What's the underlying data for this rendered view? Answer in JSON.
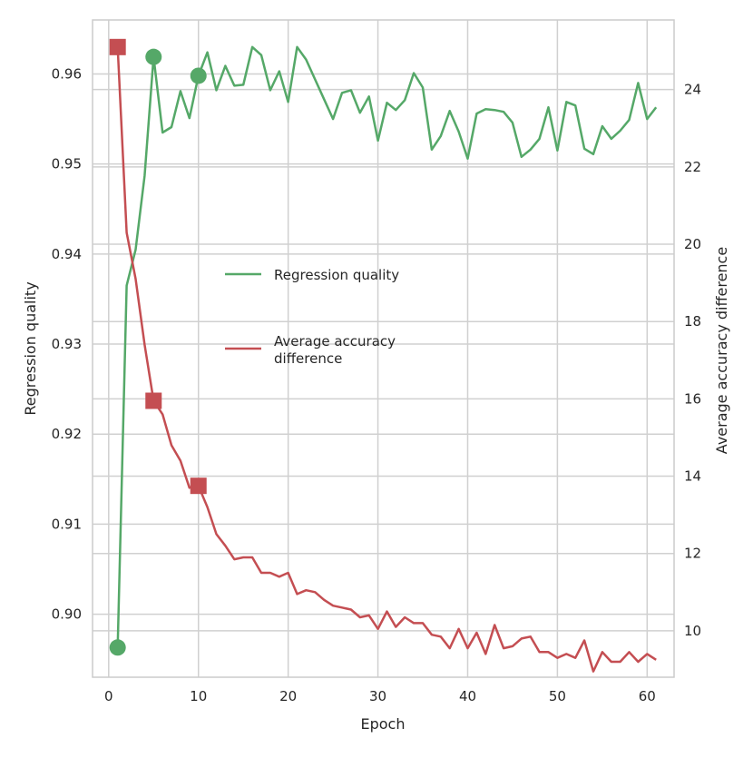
{
  "chart_data": {
    "type": "line",
    "xlabel": "Epoch",
    "ylabel_left": "Regression quality",
    "ylabel_right": "Average accuracy difference",
    "xlim": [
      -1.8,
      63
    ],
    "ylim_left": [
      0.893,
      0.966
    ],
    "ylim_right": [
      8.8,
      25.8
    ],
    "xticks": [
      0,
      10,
      20,
      30,
      40,
      50,
      60
    ],
    "yticks_left": [
      0.9,
      0.91,
      0.92,
      0.93,
      0.94,
      0.95,
      0.96
    ],
    "yticks_right": [
      10,
      12,
      14,
      16,
      18,
      20,
      22,
      24
    ],
    "ytick_labels_left": [
      "0.90",
      "0.91",
      "0.92",
      "0.93",
      "0.94",
      "0.95",
      "0.96"
    ],
    "grid": true,
    "legend_position": "center",
    "series": [
      {
        "name": "Regression quality",
        "axis": "left",
        "color": "#55a868",
        "marker": "circle",
        "marker_epochs": [
          1,
          5,
          10
        ],
        "x": [
          1,
          2,
          3,
          4,
          5,
          6,
          7,
          8,
          9,
          10,
          11,
          12,
          13,
          14,
          15,
          16,
          17,
          18,
          19,
          20,
          21,
          22,
          23,
          24,
          25,
          26,
          27,
          28,
          29,
          30,
          31,
          32,
          33,
          34,
          35,
          36,
          37,
          38,
          39,
          40,
          41,
          42,
          43,
          44,
          45,
          46,
          47,
          48,
          49,
          50,
          51,
          52,
          53,
          54,
          55,
          56,
          57,
          58,
          59,
          60,
          61
        ],
        "values": [
          0.8963,
          0.9365,
          0.9405,
          0.9487,
          0.9619,
          0.9535,
          0.9541,
          0.9581,
          0.9551,
          0.9598,
          0.9624,
          0.9582,
          0.9609,
          0.9587,
          0.9588,
          0.963,
          0.9621,
          0.9582,
          0.9603,
          0.9569,
          0.963,
          0.9616,
          0.9594,
          0.9572,
          0.955,
          0.9579,
          0.9582,
          0.9557,
          0.9575,
          0.9526,
          0.9568,
          0.956,
          0.9571,
          0.9601,
          0.9585,
          0.9516,
          0.9531,
          0.9559,
          0.9536,
          0.9506,
          0.9556,
          0.9561,
          0.956,
          0.9558,
          0.9546,
          0.9508,
          0.9516,
          0.9528,
          0.9563,
          0.9515,
          0.9569,
          0.9565,
          0.9517,
          0.9511,
          0.9542,
          0.9528,
          0.9537,
          0.9549,
          0.959,
          0.955,
          0.9563
        ]
      },
      {
        "name": "Average accuracy\n difference",
        "axis": "right",
        "color": "#c44e52",
        "marker": "square",
        "marker_epochs": [
          1,
          5,
          10
        ],
        "x": [
          1,
          2,
          3,
          4,
          5,
          6,
          7,
          8,
          9,
          10,
          11,
          12,
          13,
          14,
          15,
          16,
          17,
          18,
          19,
          20,
          21,
          22,
          23,
          24,
          25,
          26,
          27,
          28,
          29,
          30,
          31,
          32,
          33,
          34,
          35,
          36,
          37,
          38,
          39,
          40,
          41,
          42,
          43,
          44,
          45,
          46,
          47,
          48,
          49,
          50,
          51,
          52,
          53,
          54,
          55,
          56,
          57,
          58,
          59,
          60,
          61
        ],
        "values": [
          25.1,
          20.3,
          19.1,
          17.4,
          15.95,
          15.6,
          14.8,
          14.4,
          13.7,
          13.75,
          13.2,
          12.5,
          12.2,
          11.85,
          11.9,
          11.9,
          11.5,
          11.5,
          11.4,
          11.5,
          10.95,
          11.05,
          11.0,
          10.8,
          10.65,
          10.6,
          10.55,
          10.35,
          10.4,
          10.05,
          10.5,
          10.1,
          10.35,
          10.2,
          10.2,
          9.9,
          9.85,
          9.55,
          10.05,
          9.55,
          9.95,
          9.4,
          10.15,
          9.55,
          9.6,
          9.8,
          9.85,
          9.45,
          9.45,
          9.3,
          9.4,
          9.3,
          9.75,
          8.95,
          9.45,
          9.2,
          9.2,
          9.45,
          9.2,
          9.4,
          9.25
        ]
      }
    ]
  }
}
